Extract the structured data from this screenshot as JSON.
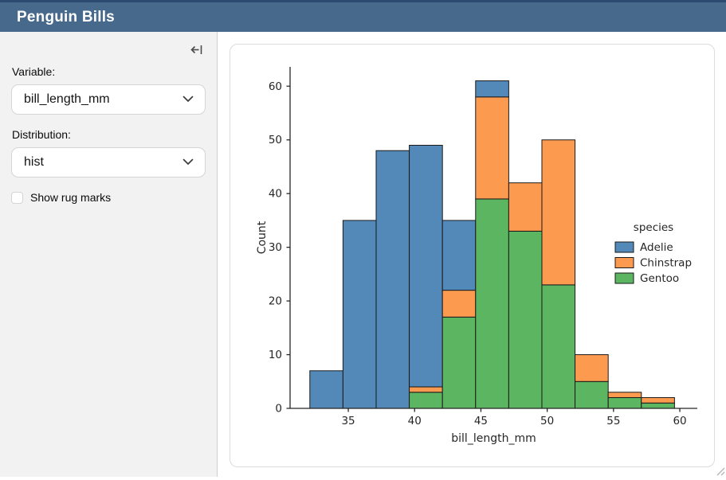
{
  "header": {
    "title": "Penguin Bills"
  },
  "sidebar": {
    "collapse_icon": "collapse-sidebar-left",
    "variable": {
      "label": "Variable:",
      "value": "bill_length_mm"
    },
    "distribution": {
      "label": "Distribution:",
      "value": "hist"
    },
    "rug": {
      "label": "Show rug marks",
      "checked": false
    }
  },
  "chart_data": {
    "type": "histogram-stacked",
    "title": "",
    "xlabel": "bill_length_mm",
    "ylabel": "Count",
    "bin_edges": [
      32.1,
      34.6,
      37.1,
      39.6,
      42.1,
      44.6,
      47.1,
      49.6,
      52.1,
      54.6,
      57.1,
      59.6
    ],
    "series": [
      {
        "name": "Adelie",
        "color": "#5289b8",
        "values": [
          7,
          35,
          48,
          45,
          13,
          3,
          0,
          0,
          0,
          0,
          0
        ]
      },
      {
        "name": "Chinstrap",
        "color": "#fc9b50",
        "values": [
          0,
          0,
          0,
          1,
          5,
          19,
          9,
          27,
          5,
          1,
          1
        ]
      },
      {
        "name": "Gentoo",
        "color": "#5bb561",
        "values": [
          0,
          0,
          0,
          3,
          17,
          39,
          33,
          23,
          5,
          2,
          1
        ]
      }
    ],
    "stack_order_bottom_to_top": [
      "Gentoo",
      "Chinstrap",
      "Adelie"
    ],
    "bin_totals": [
      7,
      35,
      48,
      49,
      35,
      61,
      42,
      50,
      10,
      3,
      2
    ],
    "x_ticks": [
      35,
      40,
      45,
      50,
      55,
      60
    ],
    "y_ticks": [
      0,
      10,
      20,
      30,
      40,
      50,
      60
    ],
    "xlim": [
      30.61,
      61.32
    ],
    "ylim": [
      0,
      63.6
    ],
    "legend": {
      "title": "species",
      "position": "center-right",
      "frame": false
    },
    "grid": false,
    "bar_edge_color": "#1a1a1a",
    "axis_color": "#262626"
  }
}
